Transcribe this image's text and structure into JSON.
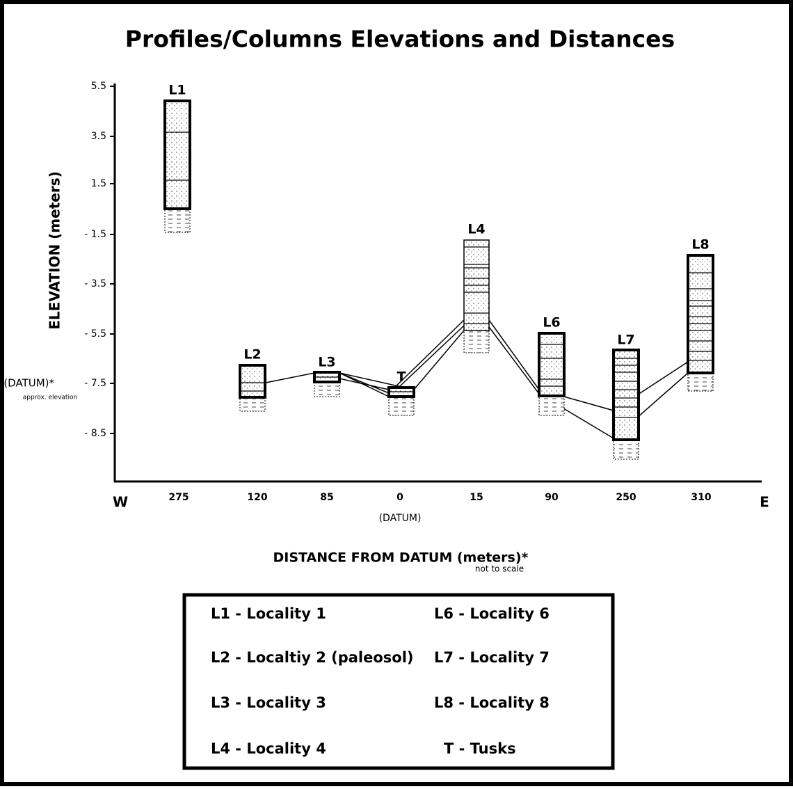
{
  "title": "Profiles/Columns Elevations and Distances",
  "y_axis": {
    "label": "ELEVATION  (meters)",
    "ticks": [
      "5.5",
      "3.5",
      "1.5",
      "- 1.5",
      "- 3.5",
      "- 5.5",
      "- 7.5",
      "- 8.5"
    ],
    "datum_label": "(DATUM)*",
    "datum_note": "approx. elevation"
  },
  "x_axis": {
    "label": "DISTANCE FROM DATUM  (meters)*",
    "note": "not to scale",
    "west": "W",
    "east": "E",
    "ticks": [
      "275",
      "120",
      "85",
      "0",
      "15",
      "90",
      "250",
      "310"
    ],
    "datum_label": "(DATUM)"
  },
  "columns": [
    "L1",
    "L2",
    "L3",
    "T",
    "L4",
    "L6",
    "L7",
    "L8"
  ],
  "legend": [
    "L1 - Locality 1",
    "L2 - Localtiy 2 (paleosol)",
    "L3 - Locality 3",
    "L4 - Locality 4",
    "L6 - Locality 6",
    "L7 - Locality 7",
    "L8 - Locality 8",
    "T - Tusks"
  ]
}
